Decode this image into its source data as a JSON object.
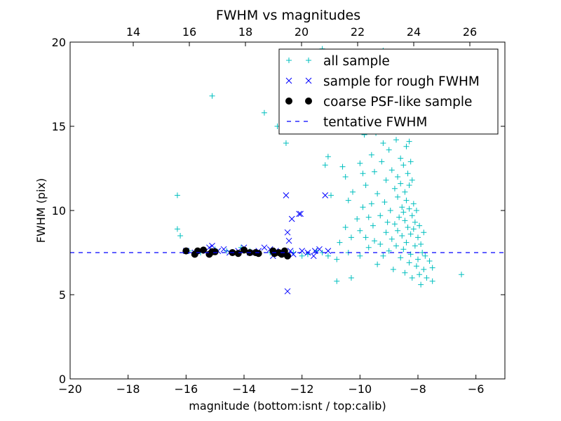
{
  "chart_data": {
    "type": "scatter",
    "title": "FWHM vs magnitudes",
    "xlabel": "magnitude (bottom:isnt / top:calib)",
    "ylabel": "FWHM (pix)",
    "xlim": [
      -20,
      -5
    ],
    "ylim": [
      0,
      20
    ],
    "x_ticks": [
      -20,
      -18,
      -16,
      -14,
      -12,
      -10,
      -8,
      -6
    ],
    "x_tick_labels": [
      "−20",
      "−18",
      "−16",
      "−14",
      "−12",
      "−10",
      "−8",
      "−6"
    ],
    "y_ticks": [
      0,
      5,
      10,
      15,
      20
    ],
    "y_tick_labels": [
      "0",
      "5",
      "10",
      "15",
      "20"
    ],
    "top_axis": {
      "xlim": [
        11.75,
        27.25
      ],
      "ticks": [
        14,
        16,
        18,
        20,
        22,
        24,
        26
      ],
      "tick_labels": [
        "14",
        "16",
        "18",
        "20",
        "22",
        "24",
        "26"
      ]
    },
    "grid": false,
    "legend_position": "top-right",
    "series": [
      {
        "name": "all sample",
        "marker": "plus",
        "color": "#00bfbf",
        "points": [
          [
            -16.3,
            10.9
          ],
          [
            -16.3,
            8.9
          ],
          [
            -16.2,
            8.5
          ],
          [
            -15.9,
            7.6
          ],
          [
            -15.5,
            7.5
          ],
          [
            -15.1,
            16.8
          ],
          [
            -15.0,
            7.7
          ],
          [
            -14.6,
            7.6
          ],
          [
            -14.1,
            7.8
          ],
          [
            -13.8,
            7.6
          ],
          [
            -13.3,
            15.8
          ],
          [
            -13.1,
            7.5
          ],
          [
            -12.85,
            15.0
          ],
          [
            -12.55,
            14.0
          ],
          [
            -12.3,
            7.5
          ],
          [
            -12.0,
            7.3
          ],
          [
            -11.8,
            7.4
          ],
          [
            -11.5,
            7.6
          ],
          [
            -11.3,
            7.5
          ],
          [
            -11.1,
            7.3
          ],
          [
            -11.2,
            12.7
          ],
          [
            -11.1,
            13.2
          ],
          [
            -11.0,
            10.9
          ],
          [
            -10.8,
            7.1
          ],
          [
            -10.8,
            5.8
          ],
          [
            -10.7,
            8.1
          ],
          [
            -10.6,
            12.6
          ],
          [
            -10.5,
            12.0
          ],
          [
            -10.5,
            9.0
          ],
          [
            -10.4,
            10.6
          ],
          [
            -10.4,
            7.5
          ],
          [
            -10.3,
            6.0
          ],
          [
            -10.3,
            8.4
          ],
          [
            -10.25,
            11.1
          ],
          [
            -10.1,
            9.5
          ],
          [
            -10.0,
            12.8
          ],
          [
            -10.0,
            8.8
          ],
          [
            -10.0,
            7.3
          ],
          [
            -9.9,
            10.2
          ],
          [
            -9.9,
            12.2
          ],
          [
            -9.85,
            14.5
          ],
          [
            -9.8,
            8.4
          ],
          [
            -9.8,
            11.5
          ],
          [
            -9.7,
            9.6
          ],
          [
            -9.7,
            7.8
          ],
          [
            -9.6,
            15.9
          ],
          [
            -9.6,
            13.3
          ],
          [
            -9.6,
            10.4
          ],
          [
            -9.55,
            9.1
          ],
          [
            -9.5,
            8.2
          ],
          [
            -9.5,
            12.3
          ],
          [
            -9.45,
            14.6
          ],
          [
            -9.4,
            6.8
          ],
          [
            -9.4,
            11.0
          ],
          [
            -9.35,
            17.4
          ],
          [
            -9.3,
            9.7
          ],
          [
            -9.3,
            8.0
          ],
          [
            -9.25,
            12.9
          ],
          [
            -9.2,
            7.3
          ],
          [
            -9.2,
            14.0
          ],
          [
            -9.15,
            10.5
          ],
          [
            -9.1,
            11.8
          ],
          [
            -9.1,
            8.7
          ],
          [
            -9.05,
            9.3
          ],
          [
            -9.0,
            13.6
          ],
          [
            -9.0,
            7.6
          ],
          [
            -8.95,
            10.0
          ],
          [
            -8.9,
            12.4
          ],
          [
            -8.9,
            8.3
          ],
          [
            -8.85,
            15.7
          ],
          [
            -8.85,
            6.5
          ],
          [
            -8.8,
            11.3
          ],
          [
            -8.8,
            9.2
          ],
          [
            -8.75,
            14.2
          ],
          [
            -8.75,
            7.9
          ],
          [
            -8.7,
            10.8
          ],
          [
            -8.7,
            12.0
          ],
          [
            -8.7,
            8.8
          ],
          [
            -8.65,
            16.3
          ],
          [
            -8.65,
            9.6
          ],
          [
            -8.6,
            13.1
          ],
          [
            -8.6,
            7.2
          ],
          [
            -8.6,
            11.6
          ],
          [
            -8.55,
            10.2
          ],
          [
            -8.55,
            14.8
          ],
          [
            -8.55,
            8.5
          ],
          [
            -8.5,
            9.9
          ],
          [
            -8.5,
            12.7
          ],
          [
            -8.5,
            7.7
          ],
          [
            -8.5,
            17.8
          ],
          [
            -8.45,
            11.1
          ],
          [
            -8.45,
            6.3
          ],
          [
            -8.45,
            9.4
          ],
          [
            -8.4,
            13.8
          ],
          [
            -8.4,
            10.6
          ],
          [
            -8.4,
            8.1
          ],
          [
            -8.35,
            12.2
          ],
          [
            -8.35,
            15.2
          ],
          [
            -8.35,
            9.0
          ],
          [
            -8.3,
            6.9
          ],
          [
            -8.3,
            11.5
          ],
          [
            -8.3,
            10.1
          ],
          [
            -8.3,
            14.1
          ],
          [
            -8.25,
            8.6
          ],
          [
            -8.25,
            12.9
          ],
          [
            -8.25,
            7.4
          ],
          [
            -8.2,
            9.7
          ],
          [
            -8.2,
            11.8
          ],
          [
            -8.2,
            6.0
          ],
          [
            -8.15,
            10.4
          ],
          [
            -8.15,
            8.9
          ],
          [
            -8.1,
            7.9
          ],
          [
            -8.1,
            9.3
          ],
          [
            -8.05,
            6.7
          ],
          [
            -8.05,
            10.0
          ],
          [
            -8.0,
            8.4
          ],
          [
            -8.0,
            7.1
          ],
          [
            -7.95,
            9.1
          ],
          [
            -7.95,
            6.2
          ],
          [
            -7.9,
            8.0
          ],
          [
            -7.9,
            5.6
          ],
          [
            -7.85,
            7.5
          ],
          [
            -7.8,
            8.7
          ],
          [
            -7.8,
            6.5
          ],
          [
            -7.75,
            7.3
          ],
          [
            -7.7,
            6.0
          ],
          [
            -7.6,
            7.0
          ],
          [
            -7.5,
            6.6
          ],
          [
            -7.5,
            5.8
          ],
          [
            -6.5,
            6.2
          ],
          [
            -9.2,
            19.5
          ],
          [
            -8.9,
            18.8
          ],
          [
            -8.7,
            18.2
          ],
          [
            -11.3,
            19.6
          ]
        ]
      },
      {
        "name": "sample for rough FWHM",
        "marker": "x",
        "color": "#0000ff",
        "points": [
          [
            -16.0,
            7.6
          ],
          [
            -15.7,
            7.5
          ],
          [
            -15.5,
            7.6
          ],
          [
            -15.2,
            7.8
          ],
          [
            -15.1,
            7.9
          ],
          [
            -14.9,
            7.6
          ],
          [
            -14.7,
            7.7
          ],
          [
            -14.5,
            7.5
          ],
          [
            -14.2,
            7.6
          ],
          [
            -14.0,
            7.8
          ],
          [
            -13.8,
            7.5
          ],
          [
            -13.5,
            7.6
          ],
          [
            -13.3,
            7.8
          ],
          [
            -13.1,
            7.7
          ],
          [
            -12.9,
            7.6
          ],
          [
            -12.7,
            7.5
          ],
          [
            -12.55,
            10.9
          ],
          [
            -12.5,
            8.7
          ],
          [
            -12.45,
            8.2
          ],
          [
            -12.4,
            7.6
          ],
          [
            -12.35,
            9.5
          ],
          [
            -12.3,
            7.4
          ],
          [
            -12.1,
            9.8
          ],
          [
            -12.05,
            9.8
          ],
          [
            -12.0,
            7.6
          ],
          [
            -11.8,
            7.5
          ],
          [
            -11.6,
            7.3
          ],
          [
            -11.55,
            7.6
          ],
          [
            -11.4,
            7.7
          ],
          [
            -11.2,
            10.9
          ],
          [
            -11.1,
            7.6
          ],
          [
            -12.5,
            5.2
          ],
          [
            -13.0,
            7.3
          ]
        ]
      },
      {
        "name": "coarse PSF-like sample",
        "marker": "circle",
        "color": "#000000",
        "points": [
          [
            -16.0,
            7.6
          ],
          [
            -15.7,
            7.4
          ],
          [
            -15.6,
            7.6
          ],
          [
            -15.4,
            7.65
          ],
          [
            -15.2,
            7.4
          ],
          [
            -15.1,
            7.55
          ],
          [
            -15.0,
            7.55
          ],
          [
            -14.4,
            7.5
          ],
          [
            -14.2,
            7.45
          ],
          [
            -14.0,
            7.65
          ],
          [
            -13.8,
            7.5
          ],
          [
            -13.6,
            7.5
          ],
          [
            -13.5,
            7.45
          ],
          [
            -13.0,
            7.6
          ],
          [
            -12.95,
            7.45
          ],
          [
            -12.8,
            7.5
          ],
          [
            -12.7,
            7.4
          ],
          [
            -12.6,
            7.6
          ],
          [
            -12.5,
            7.3
          ]
        ]
      },
      {
        "name": "tentative FWHM",
        "marker": "dashed-line",
        "color": "#0000ff",
        "y": 7.5
      }
    ]
  }
}
